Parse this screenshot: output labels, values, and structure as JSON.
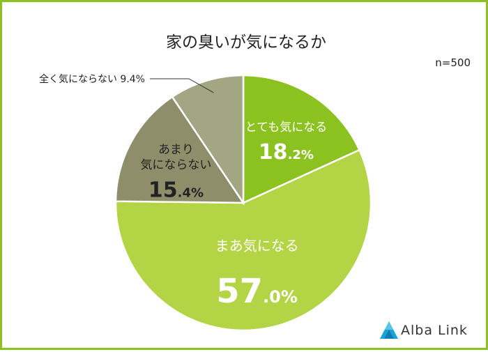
{
  "chart_data": {
    "type": "pie",
    "title": "家の臭いが気になるか",
    "sample_size": "n=500",
    "start_angle_deg": 0,
    "direction": "clockwise",
    "slices": [
      {
        "label": "とても気になる",
        "label_lines": [
          "とても気になる"
        ],
        "value": 18.2,
        "int": "18",
        "dec": ".2%",
        "color": "#8cc21f",
        "text_color": "#ffffff"
      },
      {
        "label": "まあ気になる",
        "label_lines": [
          "まあ気になる"
        ],
        "value": 57.0,
        "int": "57",
        "dec": ".0%",
        "color": "#b3d445",
        "text_color": "#ffffff"
      },
      {
        "label": "あまり気にならない",
        "label_lines": [
          "あまり",
          "気にならない"
        ],
        "value": 15.4,
        "int": "15",
        "dec": ".4%",
        "color": "#8e8e6b",
        "text_color": "#222222"
      },
      {
        "label": "全く気にならない",
        "label_lines": [
          "全く気にならない 9.4%"
        ],
        "value": 9.4,
        "int": "",
        "dec": "",
        "color": "#a2a683",
        "text_color": "#222222",
        "callout": true
      }
    ]
  },
  "logo": {
    "text": "Alba Link"
  }
}
